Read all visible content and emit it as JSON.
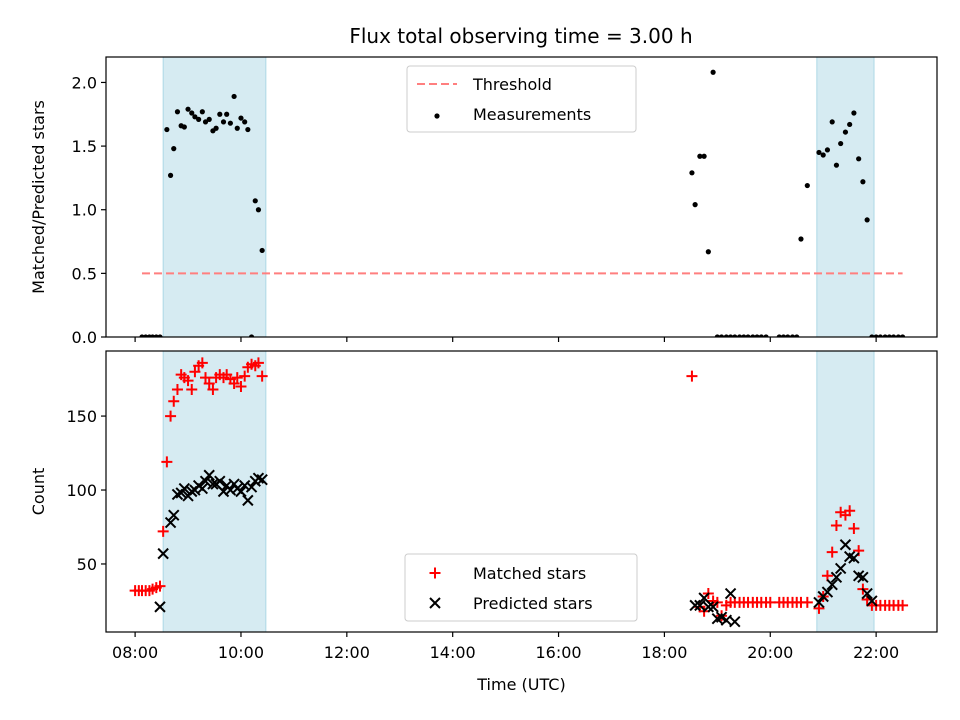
{
  "title": "Flux total observing time = 3.00 h",
  "chart_data": [
    {
      "type": "scatter",
      "title": "Flux total observing time = 3.00 h",
      "xlabel": "",
      "ylabel": "Matched/Predicted stars",
      "xlim": [
        7.45,
        23.15
      ],
      "ylim": [
        0,
        2.2
      ],
      "yticks": [
        0.0,
        0.5,
        1.0,
        1.5,
        2.0
      ],
      "ytick_labels": [
        "0.0",
        "0.5",
        "1.0",
        "1.5",
        "2.0"
      ],
      "legend": {
        "placement": "top-center",
        "entries": [
          "Threshold",
          "Measurements"
        ]
      },
      "shaded_spans": [
        [
          8.53,
          10.47
        ],
        [
          20.88,
          21.96
        ]
      ],
      "threshold": {
        "name": "Threshold",
        "value": 0.5,
        "x_range": [
          8.13,
          22.5
        ],
        "color": "#ff7f7f"
      },
      "series": [
        {
          "name": "Measurements",
          "color": "#000000",
          "x": [
            8.13,
            8.2,
            8.27,
            8.33,
            8.4,
            8.47,
            8.6,
            8.67,
            8.73,
            8.8,
            8.87,
            8.93,
            9.0,
            9.07,
            9.13,
            9.2,
            9.27,
            9.33,
            9.4,
            9.47,
            9.53,
            9.6,
            9.67,
            9.73,
            9.8,
            9.87,
            9.93,
            10.0,
            10.07,
            10.13,
            10.2,
            10.27,
            10.33,
            10.4,
            18.52,
            18.58,
            18.67,
            18.75,
            18.83,
            18.92,
            19.0,
            19.08,
            19.17,
            19.25,
            19.33,
            19.42,
            19.5,
            19.58,
            19.67,
            19.75,
            19.83,
            19.92,
            20.17,
            20.25,
            20.33,
            20.42,
            20.5,
            20.58,
            20.7,
            20.92,
            21.0,
            21.08,
            21.17,
            21.25,
            21.33,
            21.42,
            21.5,
            21.58,
            21.67,
            21.75,
            21.83,
            21.92,
            22.0,
            22.08,
            22.17,
            22.25,
            22.33,
            22.42,
            22.5
          ],
          "y": [
            0,
            0,
            0,
            0,
            0,
            0,
            1.63,
            1.27,
            1.48,
            1.77,
            1.66,
            1.65,
            1.79,
            1.76,
            1.73,
            1.71,
            1.77,
            1.69,
            1.71,
            1.62,
            1.64,
            1.75,
            1.69,
            1.75,
            1.68,
            1.89,
            1.64,
            1.72,
            1.69,
            1.63,
            0,
            1.07,
            1.0,
            0.68,
            1.29,
            1.04,
            1.42,
            1.42,
            0.67,
            2.08,
            0,
            0,
            0,
            0,
            0,
            0,
            0,
            0,
            0,
            0,
            0,
            0,
            0,
            0,
            0,
            0,
            0,
            0.77,
            1.19,
            1.45,
            1.43,
            1.47,
            1.69,
            1.35,
            1.52,
            1.61,
            1.67,
            1.76,
            1.4,
            1.22,
            0.92,
            0,
            0,
            0,
            0,
            0,
            0,
            0,
            0
          ]
        }
      ]
    },
    {
      "type": "scatter",
      "title": "",
      "xlabel": "Time (UTC)",
      "ylabel": "Count",
      "xlim": [
        7.45,
        23.15
      ],
      "ylim": [
        4,
        194
      ],
      "yticks": [
        50,
        100,
        150
      ],
      "ytick_labels": [
        "50",
        "100",
        "150"
      ],
      "xticks": [
        8,
        10,
        12,
        14,
        16,
        18,
        20,
        22
      ],
      "xtick_labels": [
        "08:00",
        "10:00",
        "12:00",
        "14:00",
        "16:00",
        "18:00",
        "20:00",
        "22:00"
      ],
      "legend": {
        "placement": "lower-center",
        "entries": [
          "Matched stars",
          "Predicted stars"
        ]
      },
      "shaded_spans": [
        [
          8.53,
          10.47
        ],
        [
          20.88,
          21.96
        ]
      ],
      "series": [
        {
          "name": "Matched stars",
          "marker": "+",
          "color": "#ff0000",
          "x": [
            8.0,
            8.07,
            8.13,
            8.2,
            8.27,
            8.33,
            8.4,
            8.47,
            8.53,
            8.6,
            8.67,
            8.73,
            8.8,
            8.87,
            8.93,
            9.0,
            9.07,
            9.13,
            9.2,
            9.27,
            9.33,
            9.4,
            9.47,
            9.53,
            9.6,
            9.67,
            9.73,
            9.8,
            9.87,
            9.93,
            10.0,
            10.07,
            10.13,
            10.2,
            10.27,
            10.33,
            10.4,
            18.52,
            18.67,
            18.75,
            18.83,
            18.92,
            19.0,
            19.08,
            19.17,
            19.25,
            19.33,
            19.42,
            19.5,
            19.58,
            19.67,
            19.75,
            19.83,
            19.92,
            20.0,
            20.17,
            20.25,
            20.33,
            20.42,
            20.5,
            20.58,
            20.7,
            20.92,
            21.0,
            21.08,
            21.17,
            21.25,
            21.33,
            21.42,
            21.5,
            21.58,
            21.67,
            21.75,
            21.83,
            21.92,
            22.0,
            22.08,
            22.17,
            22.25,
            22.33,
            22.42,
            22.5
          ],
          "y": [
            32,
            32,
            32,
            32,
            32,
            33,
            34,
            35,
            72,
            119,
            150,
            160,
            168,
            178,
            176,
            174,
            168,
            180,
            184,
            186,
            176,
            172,
            168,
            176,
            178,
            176,
            178,
            175,
            172,
            176,
            170,
            177,
            183,
            185,
            184,
            186,
            177,
            177,
            21,
            18,
            30,
            25,
            24,
            15,
            22,
            24,
            24,
            24,
            24,
            24,
            24,
            24,
            24,
            24,
            24,
            24,
            24,
            24,
            24,
            24,
            24,
            24,
            20,
            28,
            42,
            58,
            76,
            85,
            83,
            86,
            74,
            59,
            33,
            26,
            22,
            22,
            22,
            22,
            22,
            22,
            22,
            22
          ]
        },
        {
          "name": "Predicted stars",
          "marker": "x",
          "color": "#000000",
          "x": [
            8.47,
            8.53,
            8.67,
            8.73,
            8.8,
            8.87,
            8.93,
            9.0,
            9.07,
            9.13,
            9.2,
            9.27,
            9.33,
            9.4,
            9.47,
            9.53,
            9.6,
            9.67,
            9.73,
            9.8,
            9.87,
            9.93,
            10.0,
            10.07,
            10.13,
            10.2,
            10.27,
            10.33,
            10.4,
            18.58,
            18.67,
            18.75,
            18.83,
            18.92,
            19.0,
            19.08,
            19.17,
            19.25,
            19.33,
            20.92,
            21.0,
            21.08,
            21.17,
            21.25,
            21.33,
            21.42,
            21.5,
            21.58,
            21.67,
            21.75,
            21.83,
            21.92
          ],
          "y": [
            21,
            57,
            78,
            83,
            97,
            98,
            101,
            96,
            99,
            100,
            103,
            101,
            106,
            110,
            104,
            104,
            106,
            99,
            103,
            100,
            104,
            101,
            99,
            103,
            93,
            102,
            106,
            108,
            107,
            22,
            22,
            27,
            21,
            21,
            13,
            14,
            12,
            30,
            11,
            24,
            28,
            31,
            36,
            41,
            47,
            63,
            55,
            54,
            42,
            41,
            30,
            25
          ]
        }
      ]
    }
  ]
}
